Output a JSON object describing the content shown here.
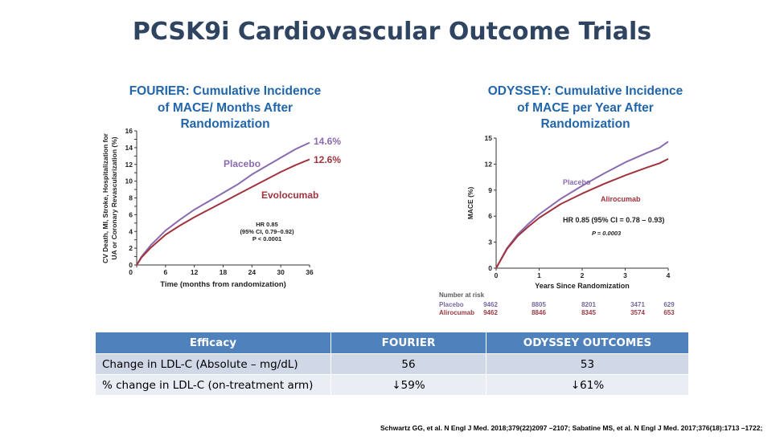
{
  "page": {
    "title": "PCSK9i Cardiovascular Outcome Trials"
  },
  "chart_data": [
    {
      "type": "line",
      "title": "FOURIER: Cumulative Incidence of MACE/ Months After Randomization",
      "title_lines": [
        "FOURIER: Cumulative Incidence",
        "of MACE/ Months After",
        "Randomization"
      ],
      "xlabel": "Time (months from randomization)",
      "ylabel_lines": [
        "CV Death, MI, Stroke, Hospitalization for",
        "UA or Coronary Revascularization (%)"
      ],
      "xlim": [
        0,
        36
      ],
      "ylim": [
        0,
        16
      ],
      "xticks": [
        0,
        6,
        12,
        18,
        24,
        30,
        36
      ],
      "yticks": [
        0,
        1,
        2,
        3,
        4,
        5,
        6,
        7,
        8,
        9,
        10,
        11,
        12,
        13,
        14,
        15,
        16
      ],
      "ytick_labels": [
        0,
        2,
        4,
        6,
        8,
        10,
        12,
        14,
        16
      ],
      "series": [
        {
          "name": "Placebo",
          "color": "#8a6bb0",
          "x": [
            0,
            1,
            3,
            6,
            9,
            12,
            15,
            18,
            21,
            24,
            27,
            30,
            33,
            36
          ],
          "y": [
            0,
            1.0,
            2.4,
            4.1,
            5.4,
            6.6,
            7.6,
            8.6,
            9.6,
            10.8,
            11.8,
            12.8,
            13.8,
            14.6
          ],
          "end_label": "14.6%"
        },
        {
          "name": "Evolocumab",
          "color": "#a0333d",
          "x": [
            0,
            1,
            3,
            6,
            9,
            12,
            15,
            18,
            21,
            24,
            27,
            30,
            33,
            36
          ],
          "y": [
            0,
            0.9,
            2.1,
            3.6,
            4.7,
            5.7,
            6.6,
            7.5,
            8.4,
            9.3,
            10.2,
            11.1,
            11.9,
            12.6
          ],
          "end_label": "12.6%"
        }
      ],
      "annotation": [
        "HR 0.85",
        "(95% CI, 0.79–0.92)",
        "P < 0.0001"
      ]
    },
    {
      "type": "line",
      "title": "ODYSSEY: Cumulative Incidence of MACE per Year After Randomization",
      "title_lines": [
        "ODYSSEY: Cumulative Incidence",
        "of MACE per Year After",
        "Randomization"
      ],
      "xlabel": "Years Since Randomization",
      "ylabel": "MACE (%)",
      "xlim": [
        0,
        4
      ],
      "ylim": [
        0,
        15
      ],
      "xticks": [
        0,
        1,
        2,
        3,
        4
      ],
      "yticks": [
        0,
        3,
        6,
        9,
        12,
        15
      ],
      "series": [
        {
          "name": "Placebo",
          "color": "#8a6bb0",
          "x": [
            0,
            0.25,
            0.5,
            0.75,
            1,
            1.5,
            2,
            2.5,
            3,
            3.5,
            3.8,
            4
          ],
          "y": [
            0,
            2.3,
            3.9,
            5.1,
            6.2,
            8.0,
            9.5,
            10.9,
            12.2,
            13.3,
            13.9,
            14.6
          ]
        },
        {
          "name": "Alirocumab",
          "color": "#a0333d",
          "x": [
            0,
            0.25,
            0.5,
            0.75,
            1,
            1.5,
            2,
            2.5,
            3,
            3.5,
            3.8,
            4
          ],
          "y": [
            0,
            2.2,
            3.7,
            4.8,
            5.8,
            7.4,
            8.6,
            9.7,
            10.7,
            11.6,
            12.1,
            12.6
          ]
        }
      ],
      "annotation": [
        "HR 0.85 (95% CI = 0.78 – 0.93)",
        "P = 0.0003"
      ],
      "number_at_risk": {
        "label": "Number at risk",
        "rows": [
          {
            "name": "Placebo",
            "values": [
              9462,
              8805,
              8201,
              3471,
              629
            ]
          },
          {
            "name": "Alirocumab",
            "values": [
              9462,
              8846,
              8345,
              3574,
              653
            ]
          }
        ]
      }
    }
  ],
  "table": {
    "headers": [
      "Efficacy",
      "FOURIER",
      "ODYSSEY OUTCOMES"
    ],
    "rows": [
      [
        "Change in LDL-C (Absolute  – mg/dL)",
        "56",
        "53"
      ],
      [
        "% change in LDL-C (on-treatment arm)",
        "↓59%",
        "↓61%"
      ]
    ]
  },
  "reference": "Schwartz GG, et al. N  Engl J Med. 2018;379(22)2097  –2107;  Sabatine MS, et al. N Engl J Med. 2017;376(18):1713  –1722;",
  "colors": {
    "title": "#2f4460",
    "chart_title": "#2165ab",
    "table_header": "#4f81bd",
    "table_row1": "#d0d8e8",
    "table_row2": "#e9edf4"
  }
}
